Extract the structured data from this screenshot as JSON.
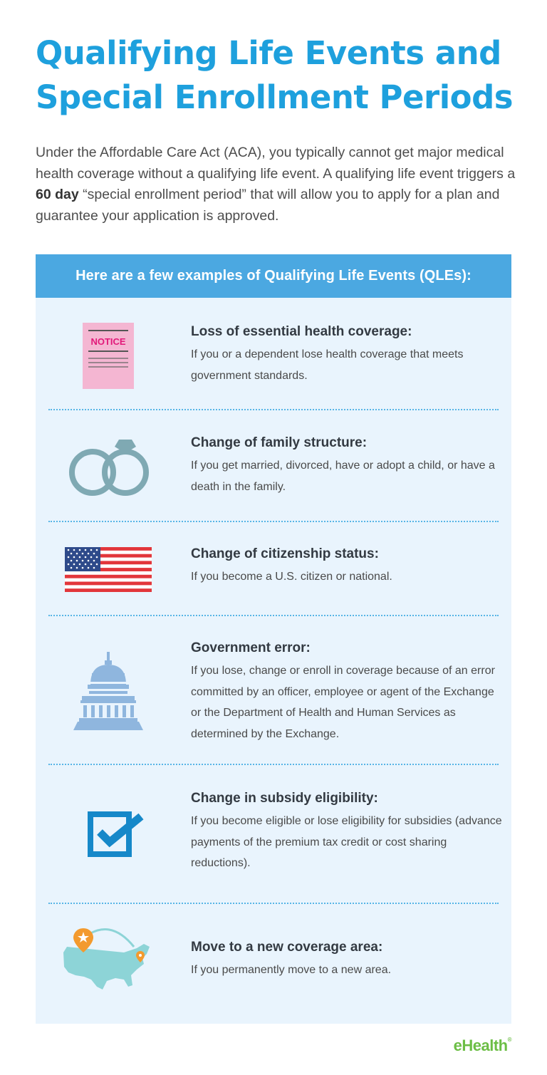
{
  "title_line1": "Qualifying Life Events and",
  "title_line2": "Special Enrollment Periods",
  "intro": {
    "part1": "Under the Affordable Care Act (ACA), you typically cannot get major medical health coverage without a qualifying life event. A qualifying life event triggers a ",
    "bold": "60 day",
    "part2": " “special enrollment period” that will allow you to apply for a plan and guarantee your application is approved."
  },
  "panel_header": "Here are a few examples of Qualifying Life Events (QLEs):",
  "items": [
    {
      "icon": "notice-document-icon",
      "icon_text": "NOTICE",
      "title": "Loss of essential health coverage:",
      "desc": "If you or a dependent lose health coverage that meets government standards."
    },
    {
      "icon": "wedding-rings-icon",
      "title": "Change of family structure:",
      "desc": "If you get married, divorced, have or adopt a child, or have a death in the family."
    },
    {
      "icon": "us-flag-icon",
      "title": "Change of citizenship status:",
      "desc": "If you become a U.S. citizen or national."
    },
    {
      "icon": "capitol-building-icon",
      "title": "Government error:",
      "desc": "If you lose, change or enroll in coverage because of an error committed by an officer, employee or agent of the Exchange or the Department of Health and Human Services as determined by the Exchange."
    },
    {
      "icon": "checkbox-icon",
      "title": "Change in subsidy eligibility:",
      "desc": "If you become eligible or lose eligibility for subsidies (advance payments of the premium tax credit or cost sharing reductions)."
    },
    {
      "icon": "us-map-icon",
      "title": "Move to a new coverage area:",
      "desc": "If you permanently move to a new area."
    }
  ],
  "colors": {
    "title": "#1ea0dd",
    "header": "#4ba8e1",
    "panel": "#e9f4fd",
    "logo": "#6cbe45"
  },
  "logo": "eHealth"
}
